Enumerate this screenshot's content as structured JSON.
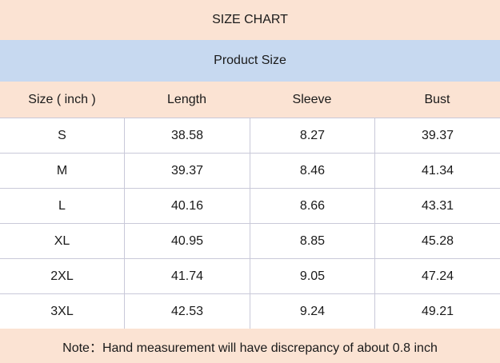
{
  "title": "SIZE CHART",
  "subtitle": "Product Size",
  "columns": [
    "Size ( inch )",
    "Length",
    "Sleeve",
    "Bust"
  ],
  "rows": [
    [
      "S",
      "38.58",
      "8.27",
      "39.37"
    ],
    [
      "M",
      "39.37",
      "8.46",
      "41.34"
    ],
    [
      "L",
      "40.16",
      "8.66",
      "43.31"
    ],
    [
      "XL",
      "40.95",
      "8.85",
      "45.28"
    ],
    [
      "2XL",
      "41.74",
      "9.05",
      "47.24"
    ],
    [
      "3XL",
      "42.53",
      "9.24",
      "49.21"
    ]
  ],
  "note": "Note：Hand measurement will have discrepancy of about 0.8 inch",
  "colors": {
    "peach": "#fbe3d3",
    "light_blue": "#c7d9f0",
    "grid": "#c9c9d9"
  }
}
